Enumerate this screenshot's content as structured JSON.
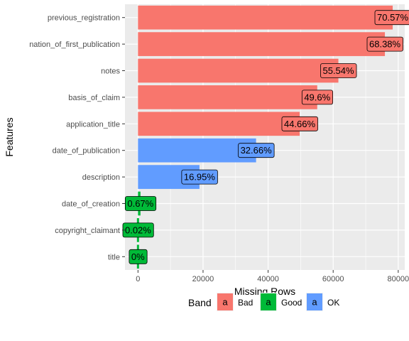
{
  "chart_data": {
    "type": "bar",
    "orientation": "horizontal",
    "xlabel": "Missing Rows",
    "ylabel": "Features",
    "xlim": [
      -4000,
      82000
    ],
    "xticks": [
      0,
      20000,
      40000,
      60000,
      80000
    ],
    "grid": true,
    "legend_position": "bottom",
    "legend": {
      "title": "Band",
      "key_glyph": "a",
      "items": [
        {
          "name": "Bad",
          "color": "#F8766D"
        },
        {
          "name": "Good",
          "color": "#00BA38"
        },
        {
          "name": "OK",
          "color": "#619CFF"
        }
      ]
    },
    "categories": [
      "title",
      "copyright_claimant",
      "date_of_creation",
      "description",
      "date_of_publication",
      "application_title",
      "basis_of_claim",
      "notes",
      "nation_of_first_publication",
      "previous_registration"
    ],
    "values": [
      0,
      22,
      760,
      18900,
      36300,
      49700,
      55100,
      61600,
      75900,
      78300
    ],
    "labels": [
      "0%",
      "0.02%",
      "0.67%",
      "16.95%",
      "32.66%",
      "44.66%",
      "49.6%",
      "55.54%",
      "68.38%",
      "70.57%"
    ],
    "bands": [
      "Good",
      "Good",
      "Good",
      "OK",
      "OK",
      "Bad",
      "Bad",
      "Bad",
      "Bad",
      "Bad"
    ]
  }
}
